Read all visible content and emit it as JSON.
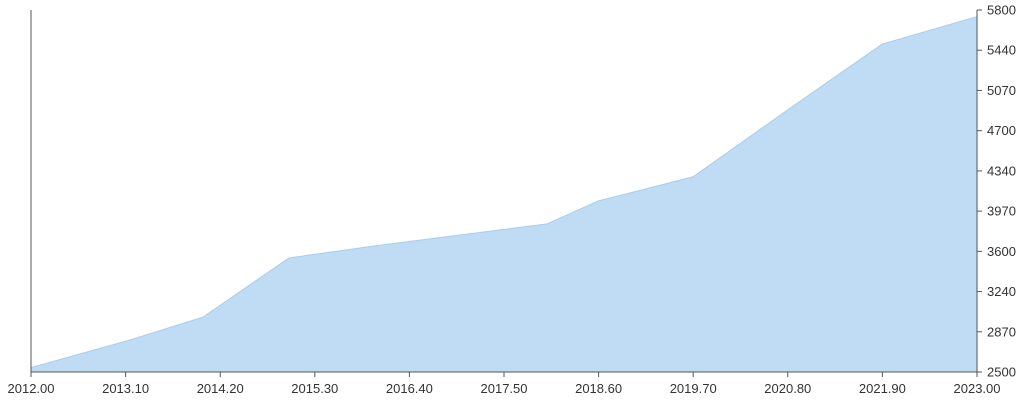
{
  "chart_data": {
    "type": "area",
    "x": [
      2012.0,
      2013.1,
      2014.0,
      2015.0,
      2016.0,
      2017.0,
      2018.0,
      2018.6,
      2019.7,
      2020.8,
      2021.9,
      2023.0
    ],
    "y": [
      2540,
      2780,
      3000,
      3540,
      3650,
      3750,
      3850,
      4060,
      4280,
      4890,
      5490,
      5740
    ],
    "x_ticks": [
      "2012.00",
      "2013.10",
      "2014.20",
      "2015.30",
      "2016.40",
      "2017.50",
      "2018.60",
      "2019.70",
      "2020.80",
      "2021.90",
      "2023.00"
    ],
    "y_ticks": [
      "2500",
      "2870",
      "3240",
      "3600",
      "3970",
      "4340",
      "4700",
      "5070",
      "5440",
      "5800"
    ],
    "xlim": [
      2012.0,
      2023.0
    ],
    "ylim": [
      2500,
      5800
    ],
    "y_axis_side": "right",
    "grid": false,
    "fill_color": "#bfdcf4",
    "line_color": "#a8cdee",
    "axis_color": "#555555"
  }
}
